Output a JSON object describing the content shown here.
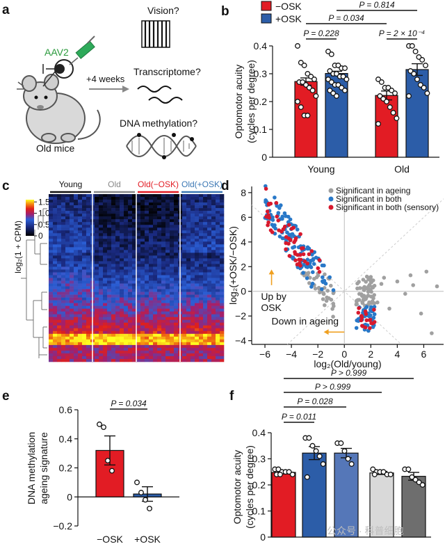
{
  "panel_letters": [
    "a",
    "b",
    "c",
    "d",
    "e",
    "f"
  ],
  "panel_a": {
    "vector": "AAV2",
    "timing": "+4 weeks",
    "questions": [
      "Vision?",
      "Transcriptome?",
      "DNA methylation?"
    ],
    "subject": "Old mice"
  },
  "chart_data": [
    {
      "panel": "b",
      "type": "bar",
      "categories": [
        "Young",
        "Old"
      ],
      "series": [
        {
          "name": "−OSK",
          "values": [
            0.272,
            0.222
          ],
          "sem": [
            0.013,
            0.016
          ],
          "points": [
            [
              0.4,
              0.34,
              0.33,
              0.3,
              0.29,
              0.28,
              0.27,
              0.27,
              0.26,
              0.25,
              0.24,
              0.22,
              0.2,
              0.18,
              0.15,
              0.15
            ],
            [
              0.28,
              0.27,
              0.25,
              0.25,
              0.24,
              0.23,
              0.22,
              0.21,
              0.2,
              0.18,
              0.16,
              0.14,
              0.12
            ]
          ]
        },
        {
          "name": "+OSK",
          "values": [
            0.301,
            0.315
          ],
          "sem": [
            0.008,
            0.021
          ],
          "points": [
            [
              0.38,
              0.37,
              0.33,
              0.33,
              0.32,
              0.32,
              0.31,
              0.3,
              0.3,
              0.29,
              0.29,
              0.28,
              0.28,
              0.27,
              0.26,
              0.26,
              0.25,
              0.24,
              0.24,
              0.23,
              0.22
            ],
            [
              0.4,
              0.4,
              0.38,
              0.36,
              0.35,
              0.33,
              0.31,
              0.3,
              0.28,
              0.26,
              0.25,
              0.23,
              0.22
            ]
          ]
        }
      ],
      "ylabel_lines": [
        "Optomotor acuity",
        "(cycles per degree)"
      ],
      "ylim": [
        0,
        0.4
      ],
      "yticks": [
        "0",
        "0.1",
        "0.2",
        "0.3",
        "0.4"
      ],
      "legend": "top-left",
      "annotations": [
        {
          "text": "P = 0.228",
          "between": [
            "Young −OSK",
            "Young +OSK"
          ]
        },
        {
          "text": "P = 2 × 10⁻⁴",
          "between": [
            "Old −OSK",
            "Old +OSK"
          ]
        },
        {
          "text": "P = 0.034",
          "between": [
            "Young −OSK",
            "Old −OSK"
          ]
        },
        {
          "text": "P = 0.814",
          "between": [
            "Young +OSK",
            "Old +OSK"
          ]
        }
      ]
    },
    {
      "panel": "c",
      "type": "heatmap",
      "groups": [
        "Young",
        "Old",
        "Old(−OSK)",
        "Old(+OSK)"
      ],
      "group_colors": [
        "#111111",
        "#888888",
        "#e21c24",
        "#3c78b4"
      ],
      "colorbar_label": "log₂(1 + CPM)",
      "colorbar_ticks": [
        "0",
        "0.5",
        "1.0",
        "1.5"
      ],
      "colorbar_range": [
        0,
        1.6
      ]
    },
    {
      "panel": "d",
      "type": "scatter",
      "xlabel": "log₂(Old/young)",
      "ylabel": "log₂(+OSK/−OSK)",
      "xlim": [
        -7,
        7.5
      ],
      "ylim": [
        -4.3,
        8.5
      ],
      "xticks": [
        "−6",
        "−4",
        "−2",
        "0",
        "2",
        "4",
        "6"
      ],
      "yticks": [
        "−4",
        "−2",
        "0",
        "2",
        "4",
        "6",
        "8"
      ],
      "legend": "top-right",
      "series": [
        {
          "name": "Significant in ageing",
          "color": "#a0a0a0"
        },
        {
          "name": "Significant in both",
          "color": "#2878c8"
        },
        {
          "name": "Significant in both (sensory)",
          "color": "#d7192d"
        }
      ],
      "annotations": [
        "Up by OSK",
        "Down in ageing"
      ]
    },
    {
      "panel": "e",
      "type": "bar",
      "categories": [
        "−OSK",
        "+OSK"
      ],
      "values": [
        0.32,
        0.02
      ],
      "sem": [
        0.1,
        0.05
      ],
      "points": [
        [
          0.5,
          0.48,
          0.25,
          0.18
        ],
        [
          0.1,
          0.03,
          -0.02,
          -0.08
        ]
      ],
      "colors": [
        "#e21c24",
        "#2c5da8"
      ],
      "ylabel_lines": [
        "DNA methylation",
        "ageing signature"
      ],
      "ylim": [
        -0.2,
        0.6
      ],
      "yticks": [
        "−0.2",
        "0",
        "0.2",
        "0.4",
        "0.6"
      ],
      "annotations": [
        {
          "text": "P = 0.034",
          "between": [
            "−OSK",
            "+OSK"
          ]
        }
      ]
    },
    {
      "panel": "f",
      "type": "bar",
      "values": [
        0.248,
        0.322,
        0.322,
        0.246,
        0.233
      ],
      "sem": [
        0.006,
        0.025,
        0.018,
        0.006,
        0.015
      ],
      "points": [
        [
          0.26,
          0.26,
          0.25,
          0.25,
          0.25,
          0.24,
          0.24,
          0.24
        ],
        [
          0.38,
          0.38,
          0.35,
          0.33,
          0.31,
          0.28,
          0.23
        ],
        [
          0.36,
          0.36,
          0.33,
          0.3,
          0.28
        ],
        [
          0.26,
          0.25,
          0.25,
          0.25,
          0.24,
          0.24,
          0.24
        ],
        [
          0.26,
          0.26,
          0.23,
          0.22,
          0.21,
          0.2
        ]
      ],
      "colors": [
        "#e21c24",
        "#2c5da8",
        "#5577b8",
        "#d9d9d9",
        "#6e6e6e"
      ],
      "ylabel_lines": [
        "Optomotor acuity",
        "(cycles per degree)"
      ],
      "ylim": [
        0,
        0.4
      ],
      "yticks": [
        "0",
        "0.1",
        "0.2",
        "0.3",
        "0.4"
      ],
      "annotations": [
        {
          "text": "P = 0.011",
          "between": [
            1,
            2
          ]
        },
        {
          "text": "P = 0.028",
          "between": [
            1,
            3
          ]
        },
        {
          "text": "P > 0.999",
          "between": [
            1,
            4
          ]
        },
        {
          "text": "P > 0.999",
          "between": [
            1,
            5
          ]
        }
      ]
    }
  ],
  "watermark": "公众号 · 科普细胞"
}
